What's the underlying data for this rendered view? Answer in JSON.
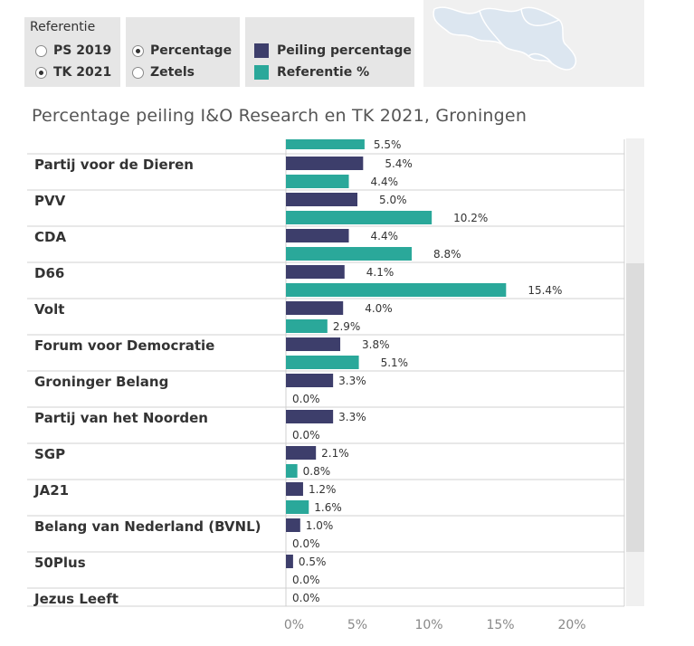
{
  "referentie": {
    "title": "Referentie",
    "options": [
      {
        "label": "PS 2019",
        "checked": false
      },
      {
        "label": "TK 2021",
        "checked": true
      }
    ]
  },
  "mode": {
    "options": [
      {
        "label": "Percentage",
        "checked": true
      },
      {
        "label": "Zetels",
        "checked": false
      }
    ]
  },
  "legend": {
    "items": [
      {
        "label": "Peiling percentage",
        "color": "#3d3e6b"
      },
      {
        "label": "Referentie %",
        "color": "#2aa89a"
      }
    ]
  },
  "chart_data": {
    "type": "bar",
    "orientation": "horizontal",
    "title": "Percentage peiling I&O Research en TK 2021, Groningen",
    "xlim": [
      0,
      23
    ],
    "x_ticks": [
      "0%",
      "5%",
      "10%",
      "15%",
      "20%"
    ],
    "tick_values": [
      0,
      5,
      10,
      15,
      20
    ],
    "grid": false,
    "partial_top_value": 5.5,
    "partial_top_label": "5.5%",
    "categories": [
      "Partij voor de Dieren",
      "PVV",
      "CDA",
      "D66",
      "Volt",
      "Forum voor Democratie",
      "Groninger Belang",
      "Partij van het Noorden",
      "SGP",
      "JA21",
      "Belang van Nederland (BVNL)",
      "50Plus",
      "Jezus Leeft"
    ],
    "series": [
      {
        "name": "Peiling percentage",
        "color": "#3d3e6b",
        "values": [
          5.4,
          5.0,
          4.4,
          4.1,
          4.0,
          3.8,
          3.3,
          3.3,
          2.1,
          1.2,
          1.0,
          0.5,
          0.0
        ],
        "labels": [
          "5.4%",
          "5.0%",
          "4.4%",
          "4.1%",
          "4.0%",
          "3.8%",
          "3.3%",
          "3.3%",
          "2.1%",
          "1.2%",
          "1.0%",
          "0.5%",
          "0.0%"
        ]
      },
      {
        "name": "Referentie %",
        "color": "#2aa89a",
        "values": [
          4.4,
          10.2,
          8.8,
          15.4,
          2.9,
          5.1,
          0.0,
          0.0,
          0.8,
          1.6,
          0.0,
          0.0,
          null
        ],
        "labels": [
          "4.4%",
          "10.2%",
          "8.8%",
          "15.4%",
          "2.9%",
          "5.1%",
          "0.0%",
          "0.0%",
          "0.8%",
          "1.6%",
          "0.0%",
          "0.0%",
          null
        ]
      }
    ]
  }
}
